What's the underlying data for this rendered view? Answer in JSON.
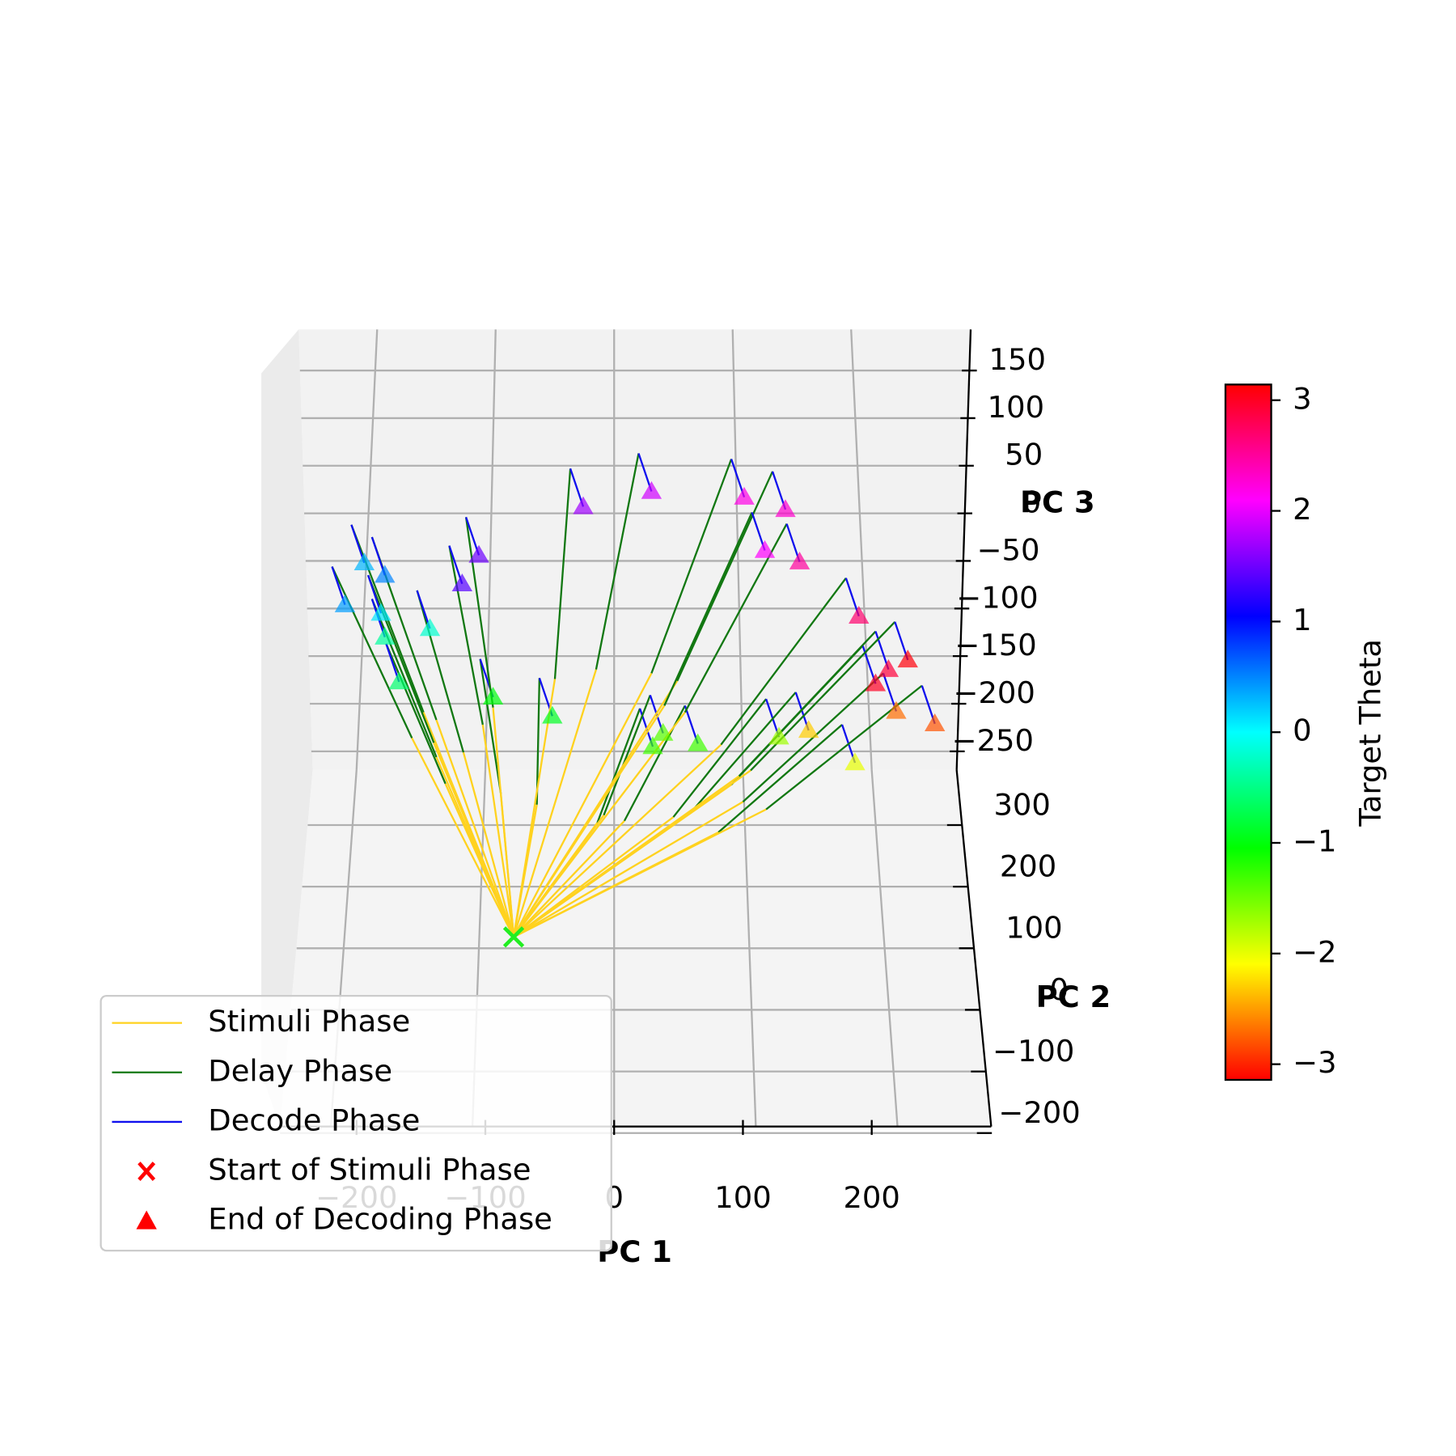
{
  "chart_data": {
    "type": "trajectory3d",
    "axis_labels": {
      "x": "PC 1",
      "y": "PC 2",
      "z": "PC 3"
    },
    "xticks": [
      {
        "value": -200,
        "label": "−200"
      },
      {
        "value": -100,
        "label": "−100"
      },
      0,
      100,
      200
    ],
    "yticks": [
      300,
      200,
      100,
      0,
      {
        "value": -100,
        "label": "−100"
      },
      {
        "value": -200,
        "label": "−200"
      }
    ],
    "zticks": [
      150,
      100,
      50,
      0,
      {
        "value": -50,
        "label": "−50"
      },
      {
        "value": -100,
        "label": "−100"
      },
      {
        "value": -150,
        "label": "−150"
      },
      {
        "value": -200,
        "label": "−200"
      },
      {
        "value": -250,
        "label": "−250"
      }
    ],
    "grid": true,
    "legend": {
      "position": "lower left",
      "entries": [
        {
          "name": "Stimuli Phase",
          "kind": "line",
          "color": "#ffd21f"
        },
        {
          "name": "Delay Phase",
          "kind": "line",
          "color": "#127812"
        },
        {
          "name": "Decode Phase",
          "kind": "line",
          "color": "#1010ee"
        },
        {
          "name": "Start of Stimuli Phase",
          "kind": "x",
          "color": "#ff0000"
        },
        {
          "name": "End of Decoding Phase",
          "kind": "triangle",
          "color": "#ff0000"
        }
      ]
    },
    "colorbar": {
      "label": "Target Theta",
      "colormap": "hsv",
      "clim": [
        -3.14159,
        3.14159
      ],
      "ticks": [
        3,
        2,
        1,
        0,
        {
          "value": -1,
          "label": "−1"
        },
        {
          "value": -2,
          "label": "−2"
        },
        {
          "value": -3,
          "label": "−3"
        }
      ]
    },
    "start": {
      "pc1": -78,
      "pc3": -445,
      "color": "#22ee22"
    },
    "trials": [
      {
        "theta": 0.3,
        "pc1": [
          -148,
          -204,
          -194
        ],
        "pc3": [
          -209,
          -12,
          -52
        ]
      },
      {
        "theta": 0.4,
        "pc1": [
          -157,
          -219,
          -209
        ],
        "pc3": [
          -236,
          -56,
          -96
        ]
      },
      {
        "theta": 0.5,
        "pc1": [
          -138,
          -188,
          -178
        ],
        "pc3": [
          -217,
          -25,
          -65
        ]
      },
      {
        "theta": 0.1,
        "pc1": [
          -140,
          -191,
          -181
        ],
        "pc3": [
          -241,
          -65,
          -105
        ]
      },
      {
        "theta": -0.4,
        "pc1": [
          -138,
          -188,
          -178
        ],
        "pc3": [
          -256,
          -90,
          -130
        ]
      },
      {
        "theta": -0.2,
        "pc1": [
          -117,
          -153,
          -143
        ],
        "pc3": [
          -251,
          -81,
          -121
        ]
      },
      {
        "theta": -0.6,
        "pc1": [
          -131,
          -177,
          -167
        ],
        "pc3": [
          -284,
          -137,
          -177
        ]
      },
      {
        "theta": -1.0,
        "pc1": [
          -88,
          -104,
          -94
        ],
        "pc3": [
          -294,
          -153,
          -193
        ]
      },
      {
        "theta": -0.9,
        "pc1": [
          -60,
          -58,
          -48
        ],
        "pc3": [
          -306,
          -173,
          -213
        ]
      },
      {
        "theta": -1.3,
        "pc1": [
          -13,
          20,
          30
        ],
        "pc3": [
          -325,
          -205,
          -245
        ]
      },
      {
        "theta": -1.4,
        "pc1": [
          -8,
          28,
          38
        ],
        "pc3": [
          -317,
          -191,
          -231
        ]
      },
      {
        "theta": -1.3,
        "pc1": [
          8,
          55,
          65
        ],
        "pc3": [
          -323,
          -202,
          -242
        ]
      },
      {
        "theta": -1.7,
        "pc1": [
          46,
          118,
          128
        ],
        "pc3": [
          -319,
          -195,
          -235
        ]
      },
      {
        "theta": -2.3,
        "pc1": [
          59,
          141,
          151
        ],
        "pc3": [
          -315,
          -188,
          -228
        ]
      },
      {
        "theta": -2.0,
        "pc1": [
          81,
          177,
          187
        ],
        "pc3": [
          -335,
          -222,
          -262
        ]
      },
      {
        "theta": -2.7,
        "pc1": [
          100,
          209,
          219
        ],
        "pc3": [
          -303,
          -168,
          -208
        ]
      },
      {
        "theta": -2.8,
        "pc1": [
          118,
          239,
          249
        ],
        "pc3": [
          -311,
          -181,
          -221
        ]
      },
      {
        "theta": 3.0,
        "pc1": [
          91,
          193,
          203
        ],
        "pc3": [
          -285,
          -139,
          -179
        ]
      },
      {
        "theta": 2.9,
        "pc1": [
          97,
          203,
          213
        ],
        "pc3": [
          -276,
          -124,
          -164
        ]
      },
      {
        "theta": 3.1,
        "pc1": [
          106,
          218,
          228
        ],
        "pc3": [
          -270,
          -114,
          -154
        ]
      },
      {
        "theta": 2.7,
        "pc1": [
          83,
          180,
          190
        ],
        "pc3": [
          -243,
          -68,
          -108
        ]
      },
      {
        "theta": 2.5,
        "pc1": [
          55,
          134,
          144
        ],
        "pc3": [
          -209,
          -11,
          -51
        ]
      },
      {
        "theta": 2.3,
        "pc1": [
          49,
          123,
          133
        ],
        "pc3": [
          -176,
          44,
          4
        ]
      },
      {
        "theta": 2.1,
        "pc1": [
          39,
          107,
          117
        ],
        "pc3": [
          -202,
          1,
          -39
        ]
      },
      {
        "theta": 2.2,
        "pc1": [
          29,
          91,
          101
        ],
        "pc3": [
          -168,
          57,
          17
        ]
      },
      {
        "theta": 1.9,
        "pc1": [
          -14,
          19,
          29
        ],
        "pc3": [
          -164,
          63,
          23
        ]
      },
      {
        "theta": 1.7,
        "pc1": [
          -46,
          -34,
          -24
        ],
        "pc3": [
          -174,
          47,
          7
        ]
      },
      {
        "theta": 1.5,
        "pc1": [
          -94,
          -115,
          -105
        ],
        "pc3": [
          -204,
          -4,
          -44
        ]
      },
      {
        "theta": 1.4,
        "pc1": [
          -102,
          -128,
          -118
        ],
        "pc3": [
          -222,
          -34,
          -74
        ]
      }
    ]
  }
}
